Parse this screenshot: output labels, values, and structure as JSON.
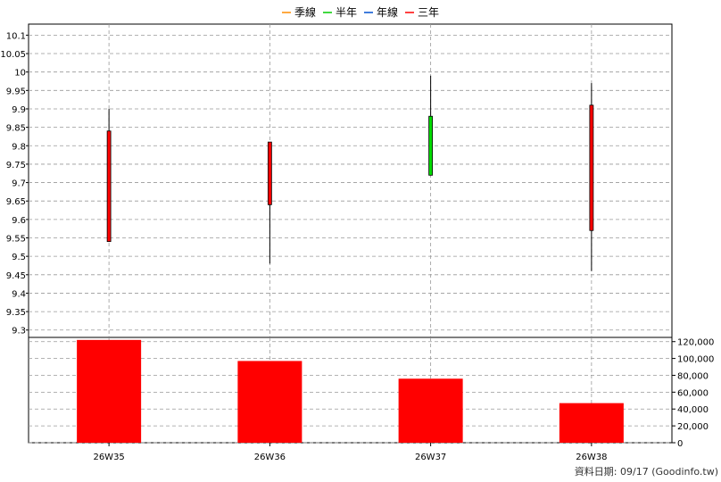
{
  "chart_data": [
    {
      "type": "candlestick",
      "title": "",
      "legend": {
        "placement": "top-center",
        "items": [
          {
            "label": "季線",
            "color": "#FF8C00"
          },
          {
            "label": "半年",
            "color": "#00CC00"
          },
          {
            "label": "年線",
            "color": "#0050D0"
          },
          {
            "label": "三年",
            "color": "#FF0000"
          }
        ]
      },
      "categories": [
        "26W35",
        "26W36",
        "26W37",
        "26W38"
      ],
      "y_ticks": [
        "9.3",
        "9.35",
        "9.4",
        "9.45",
        "9.5",
        "9.55",
        "9.6",
        "9.65",
        "9.7",
        "9.75",
        "9.8",
        "9.85",
        "9.9",
        "9.95",
        "10",
        "10.05",
        "10.1"
      ],
      "ylim": [
        9.28,
        10.13
      ],
      "grid": true,
      "candles": [
        {
          "open": 9.54,
          "high": 9.9,
          "low": 9.54,
          "close": 9.84,
          "color": "#FF0000"
        },
        {
          "open": 9.64,
          "high": 9.81,
          "low": 9.48,
          "close": 9.81,
          "color": "#FF0000"
        },
        {
          "open": 9.72,
          "high": 9.99,
          "low": 9.72,
          "close": 9.88,
          "color": "#00DD00"
        },
        {
          "open": 9.57,
          "high": 9.97,
          "low": 9.46,
          "close": 9.91,
          "color": "#FF0000"
        }
      ]
    },
    {
      "type": "bar",
      "categories": [
        "26W35",
        "26W36",
        "26W37",
        "26W38"
      ],
      "values": [
        122000,
        97000,
        76000,
        47000
      ],
      "color": "#FF0000",
      "y_ticks": [
        "0",
        "20,000",
        "40,000",
        "60,000",
        "80,000",
        "100,000",
        "120,000"
      ],
      "ylim": [
        0,
        125000
      ],
      "y_axis_side": "right",
      "grid": true
    }
  ],
  "footer": "資料日期: 09/17  (Goodinfo.tw)"
}
